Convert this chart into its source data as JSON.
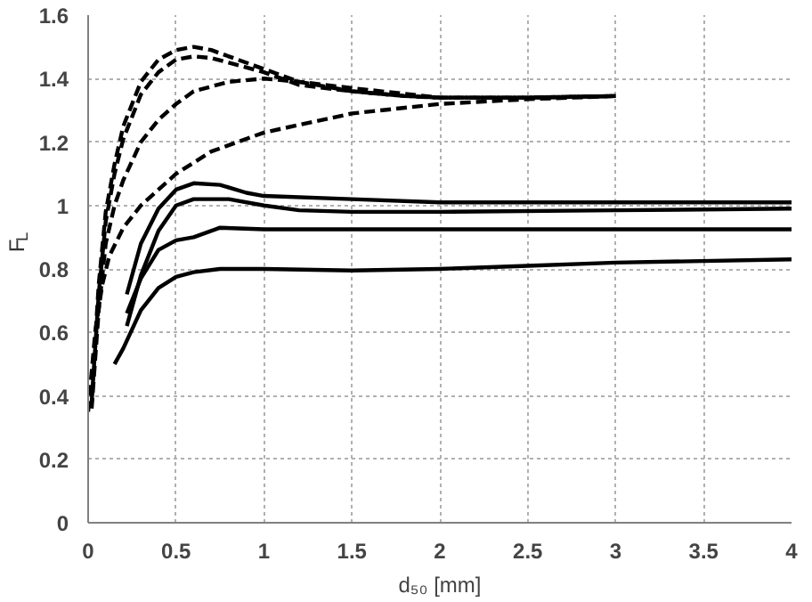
{
  "chart_data": {
    "type": "line",
    "xlabel": "d₅₀ [mm]",
    "ylabel": "F$_{L}$",
    "xlim": [
      0,
      4
    ],
    "ylim": [
      0,
      1.6
    ],
    "xticks": [
      0,
      0.5,
      1,
      1.5,
      2,
      2.5,
      3,
      3.5,
      4
    ],
    "yticks": [
      0,
      0.2,
      0.4,
      0.6,
      0.8,
      1,
      1.2,
      1.4,
      1.6
    ],
    "grid": true,
    "marker": "none",
    "series": [
      {
        "color": "#000000",
        "line_style": "dashed",
        "x": [
          0.02,
          0.06,
          0.1,
          0.15,
          0.2,
          0.3,
          0.4,
          0.5,
          0.6,
          0.7,
          0.8,
          1.0,
          1.2,
          1.5,
          1.8,
          2.0,
          2.5,
          3.0
        ],
        "values": [
          0.4,
          0.75,
          0.98,
          1.13,
          1.25,
          1.39,
          1.46,
          1.49,
          1.5,
          1.49,
          1.47,
          1.43,
          1.39,
          1.36,
          1.345,
          1.34,
          1.34,
          1.345
        ]
      },
      {
        "color": "#000000",
        "line_style": "dashed",
        "x": [
          0.02,
          0.06,
          0.1,
          0.15,
          0.2,
          0.3,
          0.4,
          0.5,
          0.6,
          0.7,
          0.8,
          1.0,
          1.2,
          1.5,
          1.8,
          2.0,
          2.5,
          3.0
        ],
        "values": [
          0.38,
          0.72,
          0.95,
          1.1,
          1.21,
          1.35,
          1.42,
          1.46,
          1.47,
          1.465,
          1.45,
          1.42,
          1.38,
          1.36,
          1.345,
          1.34,
          1.34,
          1.345
        ]
      },
      {
        "color": "#000000",
        "line_style": "dashed",
        "x": [
          0.02,
          0.06,
          0.1,
          0.15,
          0.2,
          0.3,
          0.4,
          0.5,
          0.6,
          0.8,
          1.0,
          1.2,
          1.5,
          2.0,
          2.5,
          3.0
        ],
        "values": [
          0.36,
          0.67,
          0.88,
          1.0,
          1.08,
          1.2,
          1.27,
          1.32,
          1.36,
          1.39,
          1.4,
          1.39,
          1.37,
          1.34,
          1.34,
          1.345
        ]
      },
      {
        "color": "#000000",
        "line_style": "dashed",
        "x": [
          0.0,
          0.04,
          0.08,
          0.12,
          0.2,
          0.3,
          0.4,
          0.5,
          0.7,
          1.0,
          1.5,
          2.0,
          2.5,
          3.0
        ],
        "values": [
          0.35,
          0.6,
          0.75,
          0.84,
          0.93,
          1.0,
          1.05,
          1.1,
          1.17,
          1.23,
          1.29,
          1.32,
          1.335,
          1.345
        ]
      },
      {
        "color": "#000000",
        "line_style": "solid",
        "x": [
          0.22,
          0.3,
          0.4,
          0.5,
          0.6,
          0.75,
          0.9,
          1.0,
          1.5,
          2.0,
          3.0,
          4.0
        ],
        "values": [
          0.72,
          0.88,
          0.99,
          1.05,
          1.07,
          1.065,
          1.04,
          1.03,
          1.02,
          1.01,
          1.01,
          1.01
        ]
      },
      {
        "color": "#000000",
        "line_style": "solid",
        "x": [
          0.22,
          0.3,
          0.4,
          0.5,
          0.6,
          0.8,
          1.0,
          1.2,
          1.5,
          2.0,
          3.0,
          4.0
        ],
        "values": [
          0.62,
          0.78,
          0.92,
          1.0,
          1.02,
          1.02,
          1.0,
          0.985,
          0.98,
          0.98,
          0.985,
          0.99
        ]
      },
      {
        "color": "#000000",
        "line_style": "solid",
        "x": [
          0.22,
          0.3,
          0.4,
          0.5,
          0.6,
          0.75,
          1.0,
          1.5,
          2.0,
          3.0,
          4.0
        ],
        "values": [
          0.66,
          0.77,
          0.86,
          0.89,
          0.9,
          0.93,
          0.925,
          0.925,
          0.925,
          0.925,
          0.925
        ]
      },
      {
        "color": "#000000",
        "line_style": "solid",
        "x": [
          0.15,
          0.2,
          0.3,
          0.4,
          0.5,
          0.6,
          0.75,
          1.0,
          1.5,
          2.0,
          2.5,
          3.0,
          4.0
        ],
        "values": [
          0.5,
          0.55,
          0.67,
          0.74,
          0.775,
          0.79,
          0.8,
          0.8,
          0.795,
          0.8,
          0.81,
          0.82,
          0.83
        ]
      }
    ]
  }
}
